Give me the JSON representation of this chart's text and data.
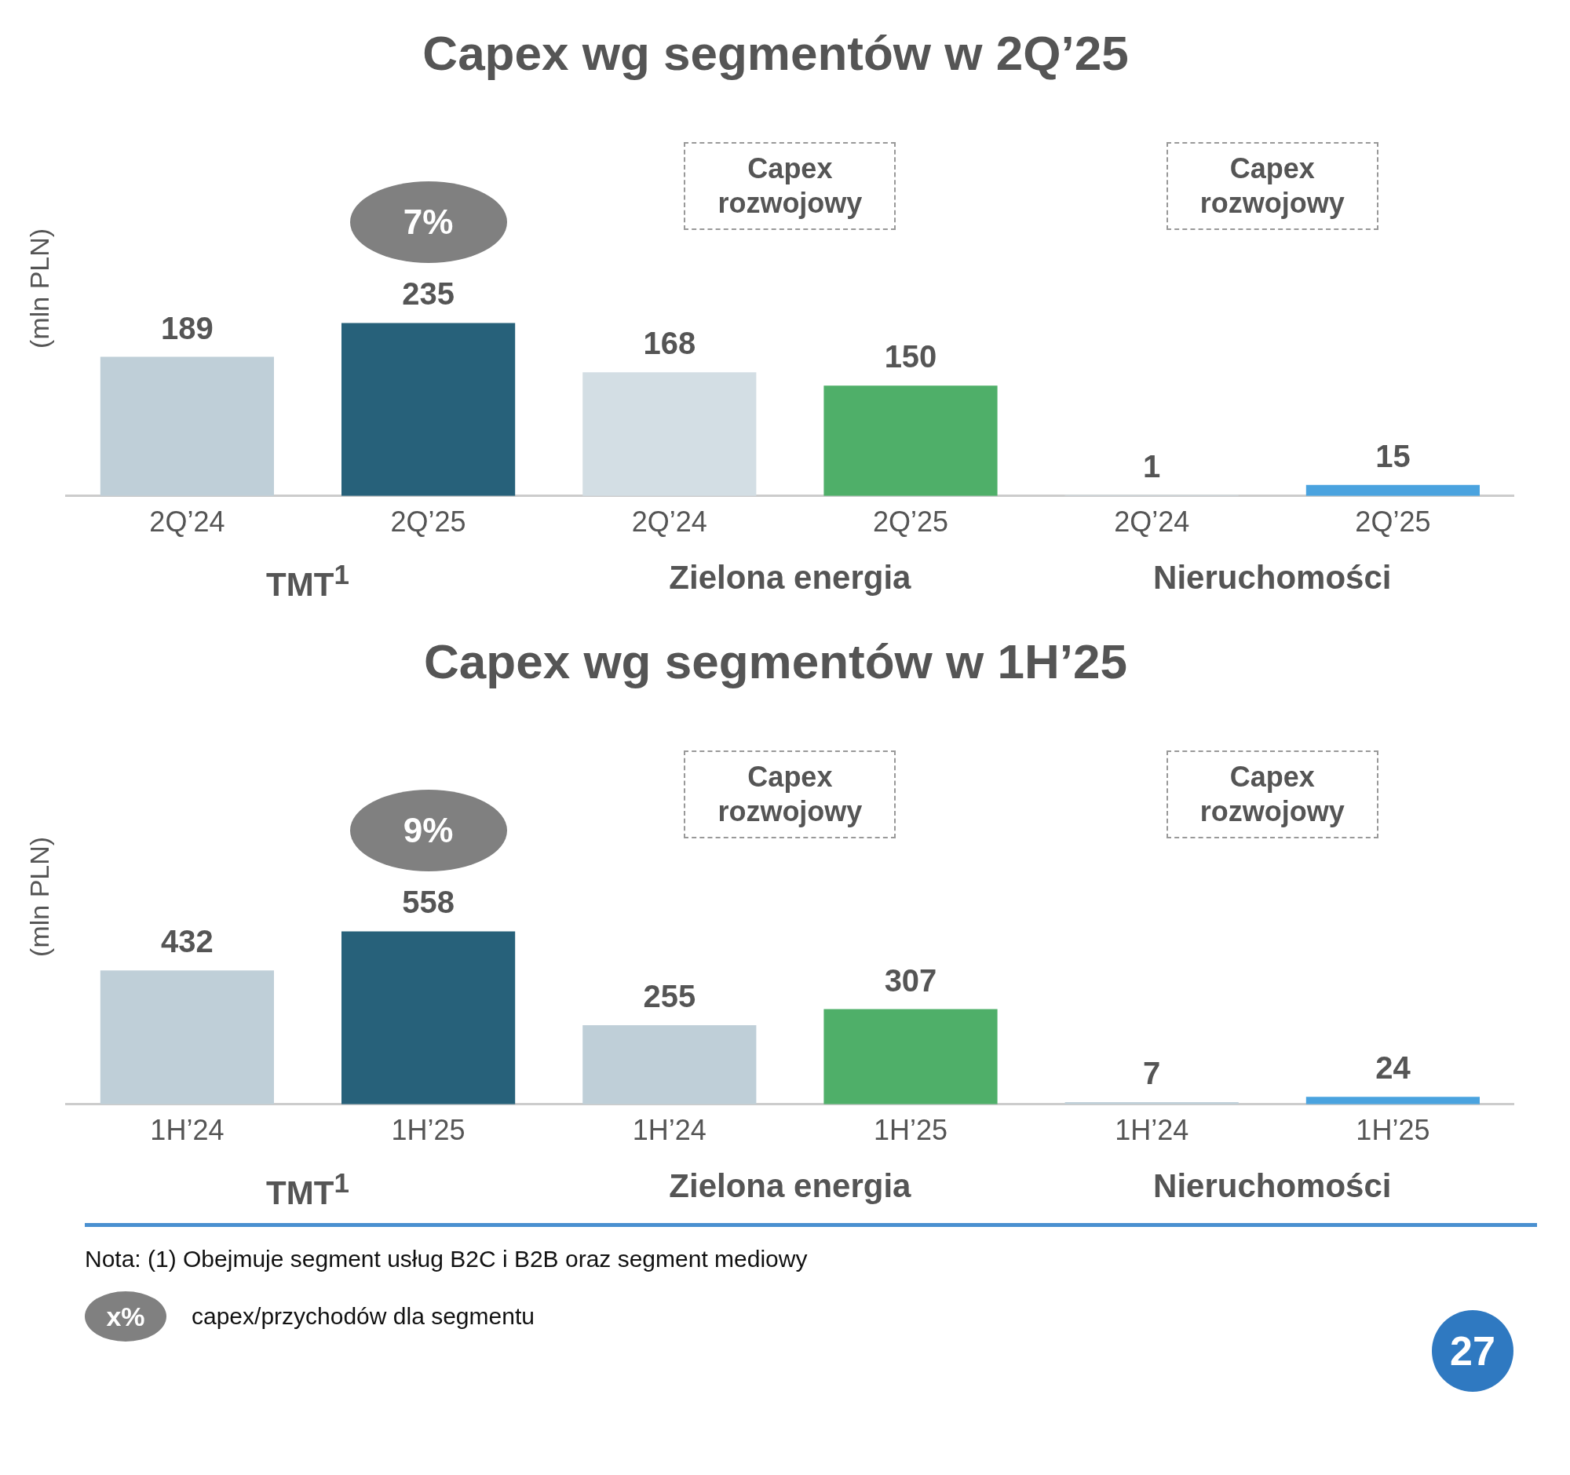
{
  "chart_data": [
    {
      "type": "bar",
      "title": "Capex wg segmentów w 2Q’25",
      "ylabel": "(mln PLN)",
      "categories": [
        "2Q’24",
        "2Q’25",
        "2Q’24",
        "2Q’25",
        "2Q’24",
        "2Q’25"
      ],
      "values": [
        189,
        235,
        168,
        150,
        1,
        15
      ],
      "colors": [
        "#bfcfd8",
        "#27617a",
        "#d3dee4",
        "#4faf69",
        "#d3dee4",
        "#4aa3df"
      ],
      "data_labels": true,
      "annotations": [
        "7%",
        "Capex rozwojowy",
        "Capex rozwojowy",
        "TMT$^{1}$",
        "Zielona energia",
        "Nieruchomości"
      ]
    },
    {
      "type": "bar",
      "title": "Capex wg segmentów w 1H’25",
      "ylabel": "(mln PLN)",
      "categories": [
        "1H’24",
        "1H’25",
        "1H’24",
        "1H’25",
        "1H’24",
        "1H’25"
      ],
      "values": [
        432,
        558,
        255,
        307,
        7,
        24
      ],
      "colors": [
        "#bfcfd8",
        "#27617a",
        "#bfcfd8",
        "#4faf69",
        "#bfcfd8",
        "#4aa3df"
      ],
      "data_labels": true,
      "annotations": [
        "9%",
        "Capex rozwojowy",
        "Capex rozwojowy",
        "TMT$^{1}$",
        "Zielona energia",
        "Nieruchomości",
        "Nota: (1) Obejmuje segment usług B2C i B2B oraz segment mediowy",
        "x%",
        "capex/przychodów dla segmentu",
        "27"
      ]
    }
  ]
}
